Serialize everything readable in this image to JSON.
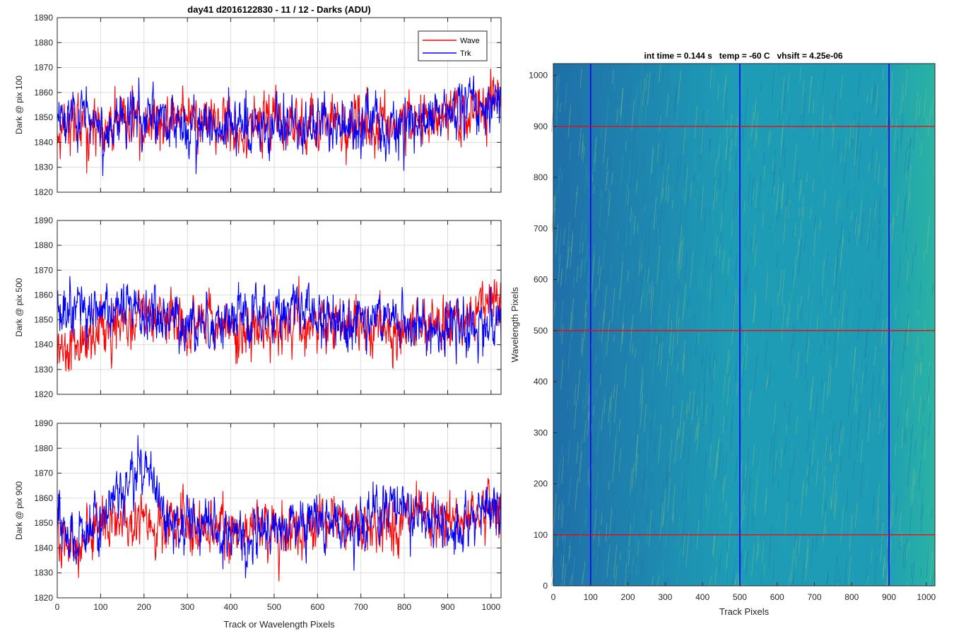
{
  "figure_title": "day41 d2016122830 - 11 / 12 - Darks (ADU)",
  "colors": {
    "wave": "#ff0000",
    "trk": "#0000ff",
    "axis": "#262626",
    "grid": "#dcdcdc"
  },
  "chart_data": [
    {
      "type": "line",
      "ylabel": "Dark @ pix 100",
      "xlim": [
        0,
        1023
      ],
      "ylim": [
        1820,
        1890
      ],
      "xticks": [
        0,
        100,
        200,
        300,
        400,
        500,
        600,
        700,
        800,
        900,
        1000
      ],
      "yticks": [
        1820,
        1830,
        1840,
        1850,
        1860,
        1870,
        1880,
        1890
      ],
      "grid": true,
      "legend": {
        "placement": "top-right",
        "entries": [
          "Wave",
          "Trk"
        ]
      },
      "series": [
        {
          "name": "Wave",
          "color": "#ff0000",
          "x": [
            0,
            100,
            140,
            200,
            300,
            400,
            500,
            600,
            700,
            800,
            900,
            1023
          ],
          "values": [
            1845,
            1848,
            1850,
            1846,
            1849,
            1847,
            1848,
            1846,
            1847,
            1848,
            1849,
            1855
          ]
        },
        {
          "name": "Trk",
          "color": "#0000ff",
          "x": [
            0,
            100,
            200,
            300,
            400,
            500,
            600,
            700,
            800,
            900,
            1023
          ],
          "values": [
            1852,
            1845,
            1852,
            1845,
            1846,
            1845,
            1846,
            1849,
            1846,
            1850,
            1858
          ]
        }
      ]
    },
    {
      "type": "line",
      "ylabel": "Dark @ pix 500",
      "xlim": [
        0,
        1023
      ],
      "ylim": [
        1820,
        1890
      ],
      "xticks": [
        0,
        100,
        200,
        300,
        400,
        500,
        600,
        700,
        800,
        900,
        1000
      ],
      "yticks": [
        1820,
        1830,
        1840,
        1850,
        1860,
        1870,
        1880,
        1890
      ],
      "grid": true,
      "series": [
        {
          "name": "Wave",
          "color": "#ff0000",
          "x": [
            0,
            100,
            200,
            300,
            400,
            500,
            600,
            700,
            800,
            900,
            1023
          ],
          "values": [
            1840,
            1844,
            1852,
            1848,
            1845,
            1846,
            1847,
            1848,
            1846,
            1849,
            1858
          ]
        },
        {
          "name": "Trk",
          "color": "#0000ff",
          "x": [
            0,
            100,
            200,
            300,
            400,
            500,
            550,
            600,
            700,
            800,
            900,
            1023
          ],
          "values": [
            1854,
            1855,
            1852,
            1849,
            1850,
            1851,
            1858,
            1850,
            1852,
            1848,
            1845,
            1850
          ]
        }
      ]
    },
    {
      "type": "line",
      "ylabel": "Dark @ pix 900",
      "xlabel": "Track or Wavelength Pixels",
      "xlim": [
        0,
        1023
      ],
      "ylim": [
        1820,
        1890
      ],
      "xticks": [
        0,
        100,
        200,
        300,
        400,
        500,
        600,
        700,
        800,
        900,
        1000
      ],
      "yticks": [
        1820,
        1830,
        1840,
        1850,
        1860,
        1870,
        1880,
        1890
      ],
      "grid": true,
      "series": [
        {
          "name": "Wave",
          "color": "#ff0000",
          "x": [
            0,
            50,
            100,
            200,
            300,
            400,
            500,
            600,
            700,
            800,
            900,
            1023
          ],
          "values": [
            1848,
            1840,
            1849,
            1850,
            1849,
            1847,
            1848,
            1849,
            1849,
            1851,
            1850,
            1858
          ]
        },
        {
          "name": "Trk",
          "color": "#0000ff",
          "x": [
            0,
            50,
            100,
            210,
            250,
            300,
            400,
            500,
            600,
            700,
            800,
            900,
            1023
          ],
          "values": [
            1852,
            1842,
            1852,
            1875,
            1852,
            1848,
            1847,
            1846,
            1850,
            1849,
            1858,
            1847,
            1856
          ]
        }
      ]
    },
    {
      "type": "heatmap",
      "title": "int time = 0.144 s   temp = -60 C   vhsift = 4.25e-06",
      "xlabel": "Track Pixels",
      "ylabel": "Wavelength Pixels",
      "xlim": [
        0,
        1023
      ],
      "ylim": [
        0,
        1023
      ],
      "xticks": [
        0,
        100,
        200,
        300,
        400,
        500,
        600,
        700,
        800,
        900,
        1000
      ],
      "yticks": [
        0,
        100,
        200,
        300,
        400,
        500,
        600,
        700,
        800,
        900,
        1000
      ],
      "colormap": [
        "#1f6fa8",
        "#1e9bb5",
        "#2ab3a5",
        "#8ec87a"
      ],
      "vertical_markers": {
        "color": "#0000ff",
        "x": [
          100,
          500,
          900
        ]
      },
      "horizontal_markers": {
        "color": "#ff0000",
        "y": [
          100,
          500,
          900
        ]
      }
    }
  ]
}
